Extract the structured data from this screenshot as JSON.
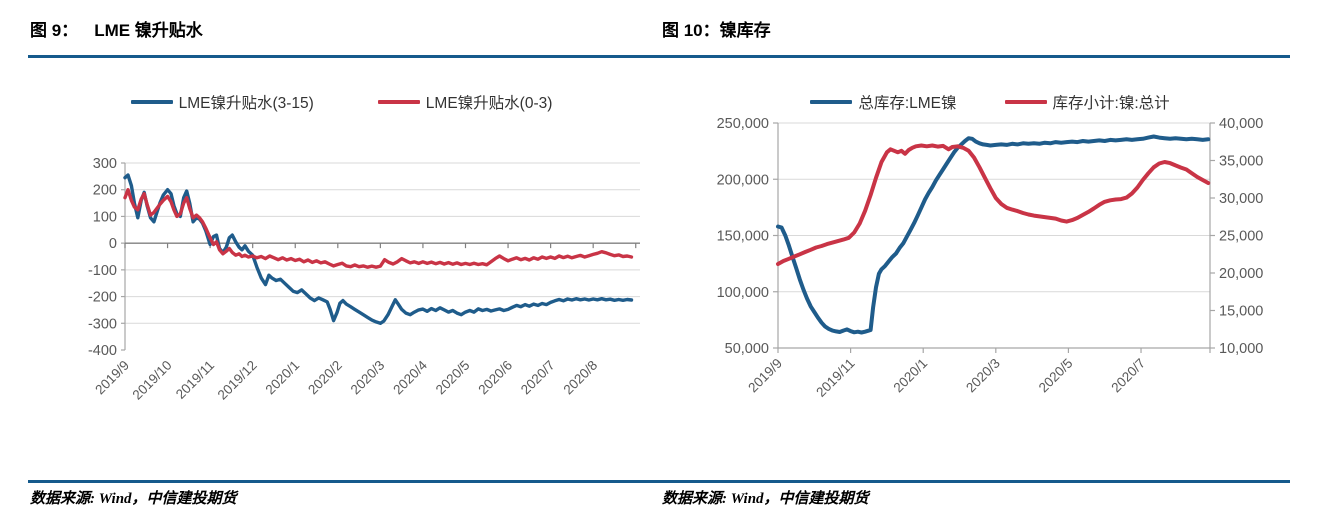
{
  "figures": [
    {
      "label": "图 9：",
      "title": "LME 镍升贴水",
      "source": "数据来源: Wind，中信建投期货"
    },
    {
      "label": "图 10：",
      "title": "镍库存",
      "source": "数据来源: Wind，中信建投期货"
    }
  ],
  "theme": {
    "rule_color": "#155a8c",
    "grid_color": "#d9d9d9",
    "axis_color": "#a6a6a6",
    "zero_line_color": "#808080",
    "tick_label_color": "#595959",
    "blue": "#1f5c8b",
    "red": "#c93446"
  },
  "chart_data": [
    {
      "type": "line",
      "title": "图 9： LME 镍升贴水",
      "legend_position": "top",
      "grid": true,
      "x_tick_labels": [
        "2019/9",
        "2019/10",
        "2019/11",
        "2019/12",
        "2020/1",
        "2020/2",
        "2020/3",
        "2020/4",
        "2020/5",
        "2020/6",
        "2020/7",
        "2020/8"
      ],
      "x_tick_positions": [
        0,
        1,
        2,
        3,
        4,
        5,
        6,
        7,
        8,
        9,
        10,
        11
      ],
      "xlim": [
        0,
        12.1
      ],
      "y_axis": {
        "min": -400,
        "max": 300,
        "step": 100,
        "labels": [
          "300",
          "200",
          "100",
          "0",
          "-100",
          "-200",
          "-300",
          "-400"
        ]
      },
      "series": [
        {
          "name": "LME镍升贴水(3-15)",
          "color": "#1f5c8b",
          "axis": "left",
          "x": [
            0,
            0.07,
            0.15,
            0.22,
            0.3,
            0.38,
            0.45,
            0.52,
            0.6,
            0.68,
            0.75,
            0.82,
            0.9,
            1,
            1.08,
            1.15,
            1.22,
            1.3,
            1.38,
            1.45,
            1.52,
            1.6,
            1.68,
            1.75,
            1.82,
            1.9,
            2,
            2.08,
            2.15,
            2.22,
            2.3,
            2.38,
            2.45,
            2.52,
            2.6,
            2.68,
            2.75,
            2.82,
            2.9,
            3,
            3.1,
            3.2,
            3.3,
            3.38,
            3.45,
            3.55,
            3.65,
            3.75,
            3.85,
            3.95,
            4.05,
            4.15,
            4.25,
            4.35,
            4.45,
            4.55,
            4.65,
            4.75,
            4.82,
            4.9,
            4.98,
            5.05,
            5.12,
            5.2,
            5.3,
            5.4,
            5.5,
            5.6,
            5.7,
            5.8,
            5.9,
            6,
            6.08,
            6.18,
            6.28,
            6.35,
            6.42,
            6.5,
            6.6,
            6.7,
            6.8,
            6.9,
            7,
            7.1,
            7.2,
            7.3,
            7.4,
            7.5,
            7.6,
            7.7,
            7.8,
            7.9,
            8,
            8.1,
            8.2,
            8.3,
            8.4,
            8.5,
            8.6,
            8.7,
            8.8,
            8.9,
            9,
            9.1,
            9.2,
            9.3,
            9.4,
            9.5,
            9.6,
            9.7,
            9.8,
            9.9,
            10,
            10.1,
            10.2,
            10.3,
            10.4,
            10.5,
            10.6,
            10.7,
            10.8,
            10.9,
            11,
            11.1,
            11.2,
            11.3,
            11.4,
            11.5,
            11.6,
            11.7,
            11.8,
            11.9
          ],
          "y": [
            245,
            255,
            215,
            150,
            95,
            160,
            190,
            140,
            95,
            80,
            115,
            150,
            180,
            200,
            185,
            140,
            110,
            100,
            170,
            195,
            150,
            80,
            95,
            90,
            75,
            45,
            -5,
            25,
            30,
            -20,
            -35,
            -15,
            20,
            30,
            5,
            -15,
            -25,
            -10,
            -30,
            -45,
            -90,
            -130,
            -155,
            -120,
            -130,
            -140,
            -135,
            -150,
            -165,
            -180,
            -185,
            -175,
            -190,
            -205,
            -215,
            -205,
            -212,
            -220,
            -248,
            -290,
            -260,
            -225,
            -215,
            -228,
            -238,
            -248,
            -258,
            -268,
            -278,
            -288,
            -295,
            -300,
            -292,
            -268,
            -235,
            -212,
            -228,
            -248,
            -262,
            -268,
            -258,
            -250,
            -247,
            -255,
            -245,
            -252,
            -242,
            -250,
            -258,
            -252,
            -262,
            -268,
            -258,
            -252,
            -258,
            -246,
            -252,
            -248,
            -254,
            -250,
            -246,
            -252,
            -248,
            -240,
            -233,
            -238,
            -230,
            -236,
            -228,
            -233,
            -226,
            -230,
            -222,
            -216,
            -211,
            -216,
            -209,
            -213,
            -208,
            -212,
            -209,
            -213,
            -209,
            -212,
            -208,
            -212,
            -210,
            -214,
            -211,
            -214,
            -211,
            -213
          ]
        },
        {
          "name": "LME镍升贴水(0-3)",
          "color": "#c93446",
          "axis": "left",
          "x": [
            0,
            0.07,
            0.15,
            0.22,
            0.3,
            0.38,
            0.45,
            0.52,
            0.6,
            0.68,
            0.75,
            0.82,
            0.9,
            1,
            1.08,
            1.15,
            1.22,
            1.3,
            1.38,
            1.45,
            1.52,
            1.6,
            1.68,
            1.75,
            1.82,
            1.9,
            2,
            2.08,
            2.15,
            2.22,
            2.3,
            2.38,
            2.45,
            2.52,
            2.6,
            2.68,
            2.75,
            2.82,
            2.9,
            3,
            3.1,
            3.2,
            3.3,
            3.4,
            3.5,
            3.6,
            3.7,
            3.8,
            3.9,
            4,
            4.1,
            4.2,
            4.3,
            4.4,
            4.5,
            4.6,
            4.7,
            4.8,
            4.9,
            5,
            5.1,
            5.2,
            5.3,
            5.4,
            5.5,
            5.6,
            5.7,
            5.8,
            5.9,
            6,
            6.1,
            6.2,
            6.3,
            6.4,
            6.5,
            6.6,
            6.7,
            6.8,
            6.9,
            7,
            7.1,
            7.2,
            7.3,
            7.4,
            7.5,
            7.6,
            7.7,
            7.8,
            7.9,
            8,
            8.1,
            8.2,
            8.3,
            8.4,
            8.5,
            8.6,
            8.7,
            8.8,
            8.9,
            9,
            9.1,
            9.2,
            9.3,
            9.4,
            9.5,
            9.6,
            9.7,
            9.8,
            9.9,
            10,
            10.1,
            10.2,
            10.3,
            10.4,
            10.5,
            10.6,
            10.7,
            10.8,
            10.9,
            11,
            11.1,
            11.2,
            11.3,
            11.4,
            11.5,
            11.6,
            11.7,
            11.8,
            11.9
          ],
          "y": [
            170,
            200,
            160,
            135,
            125,
            165,
            185,
            145,
            105,
            115,
            130,
            145,
            160,
            175,
            155,
            125,
            100,
            110,
            150,
            170,
            130,
            95,
            105,
            95,
            80,
            55,
            20,
            -5,
            5,
            -25,
            -40,
            -30,
            -20,
            -35,
            -45,
            -40,
            -50,
            -45,
            -52,
            -48,
            -55,
            -50,
            -58,
            -48,
            -55,
            -62,
            -55,
            -63,
            -58,
            -65,
            -60,
            -70,
            -63,
            -72,
            -66,
            -74,
            -70,
            -78,
            -85,
            -80,
            -75,
            -85,
            -88,
            -82,
            -88,
            -85,
            -90,
            -86,
            -90,
            -86,
            -62,
            -72,
            -78,
            -70,
            -58,
            -66,
            -74,
            -70,
            -76,
            -70,
            -76,
            -71,
            -77,
            -72,
            -78,
            -73,
            -79,
            -74,
            -80,
            -76,
            -80,
            -75,
            -80,
            -77,
            -81,
            -70,
            -58,
            -48,
            -58,
            -66,
            -60,
            -55,
            -62,
            -57,
            -63,
            -55,
            -60,
            -52,
            -57,
            -52,
            -57,
            -48,
            -54,
            -49,
            -55,
            -50,
            -46,
            -52,
            -47,
            -42,
            -38,
            -32,
            -36,
            -42,
            -47,
            -44,
            -50,
            -48,
            -52
          ]
        }
      ]
    },
    {
      "type": "line",
      "title": "图 10：镍库存",
      "legend_position": "top",
      "grid": true,
      "x_tick_labels": [
        "2019/9",
        "2019/11",
        "2020/1",
        "2020/3",
        "2020/5",
        "2020/7"
      ],
      "x_tick_positions": [
        0,
        2,
        4,
        6,
        8,
        10
      ],
      "xlim": [
        0,
        11.9
      ],
      "y_axis_left": {
        "min": 50000,
        "max": 250000,
        "step": 50000,
        "labels": [
          "250,000",
          "200,000",
          "150,000",
          "100,000",
          "50,000"
        ]
      },
      "y_axis_right": {
        "min": 10000,
        "max": 40000,
        "step": 5000,
        "labels": [
          "40,000",
          "35,000",
          "30,000",
          "25,000",
          "20,000",
          "15,000",
          "10,000"
        ]
      },
      "series": [
        {
          "name": "总库存:LME镍",
          "color": "#1f5c8b",
          "axis": "left",
          "x": [
            0,
            0.1,
            0.2,
            0.3,
            0.4,
            0.5,
            0.6,
            0.7,
            0.8,
            0.9,
            1,
            1.1,
            1.2,
            1.3,
            1.4,
            1.5,
            1.6,
            1.7,
            1.8,
            1.9,
            2,
            2.1,
            2.2,
            2.3,
            2.4,
            2.5,
            2.55,
            2.62,
            2.7,
            2.78,
            2.85,
            2.95,
            3.05,
            3.15,
            3.25,
            3.35,
            3.45,
            3.55,
            3.65,
            3.75,
            3.85,
            3.95,
            4.05,
            4.15,
            4.25,
            4.35,
            4.45,
            4.55,
            4.65,
            4.75,
            4.85,
            4.95,
            5.05,
            5.15,
            5.25,
            5.35,
            5.45,
            5.55,
            5.65,
            5.75,
            5.85,
            6,
            6.15,
            6.3,
            6.45,
            6.6,
            6.75,
            6.9,
            7.05,
            7.2,
            7.35,
            7.5,
            7.65,
            7.8,
            7.95,
            8.1,
            8.25,
            8.4,
            8.55,
            8.7,
            8.85,
            9,
            9.15,
            9.3,
            9.45,
            9.6,
            9.75,
            9.9,
            10.05,
            10.2,
            10.35,
            10.5,
            10.65,
            10.8,
            10.95,
            11.1,
            11.25,
            11.4,
            11.55,
            11.7,
            11.85
          ],
          "y": [
            158000,
            157000,
            150000,
            141000,
            131000,
            121000,
            111000,
            102000,
            94000,
            87000,
            82000,
            77000,
            72500,
            69000,
            67000,
            65500,
            64800,
            64200,
            65500,
            66500,
            65000,
            64000,
            64500,
            63800,
            64500,
            65500,
            66000,
            86000,
            104000,
            116000,
            120000,
            123000,
            127000,
            131000,
            134000,
            139000,
            143000,
            149000,
            155000,
            161000,
            168000,
            175000,
            182000,
            188000,
            193000,
            199000,
            204000,
            209000,
            214000,
            219000,
            224000,
            228000,
            231000,
            234000,
            236500,
            236000,
            233500,
            232000,
            231000,
            230500,
            230000,
            230500,
            231000,
            230500,
            231500,
            231000,
            232000,
            231500,
            232000,
            231500,
            232500,
            232000,
            233000,
            232500,
            233000,
            233500,
            233000,
            234000,
            233500,
            234000,
            234500,
            234000,
            235000,
            234500,
            235000,
            235500,
            235000,
            235500,
            236000,
            237000,
            238000,
            237000,
            236500,
            236000,
            236500,
            236000,
            235500,
            236000,
            235500,
            235000,
            235500
          ]
        },
        {
          "name": "库存小计:镍:总计",
          "color": "#c93446",
          "axis": "right",
          "x": [
            0,
            0.15,
            0.3,
            0.45,
            0.6,
            0.75,
            0.9,
            1.05,
            1.2,
            1.35,
            1.5,
            1.65,
            1.8,
            1.95,
            2.1,
            2.25,
            2.4,
            2.55,
            2.7,
            2.85,
            3,
            3.1,
            3.2,
            3.3,
            3.4,
            3.5,
            3.6,
            3.7,
            3.8,
            3.95,
            4.1,
            4.25,
            4.4,
            4.55,
            4.7,
            4.8,
            4.95,
            5.1,
            5.25,
            5.4,
            5.55,
            5.7,
            5.85,
            6,
            6.15,
            6.3,
            6.45,
            6.6,
            6.75,
            6.9,
            7.05,
            7.2,
            7.35,
            7.5,
            7.65,
            7.8,
            7.95,
            8.1,
            8.25,
            8.4,
            8.55,
            8.7,
            8.85,
            9,
            9.15,
            9.3,
            9.45,
            9.6,
            9.75,
            9.9,
            10.05,
            10.2,
            10.35,
            10.5,
            10.65,
            10.8,
            10.95,
            11.1,
            11.25,
            11.4,
            11.55,
            11.7,
            11.85
          ],
          "y": [
            21200,
            21600,
            21900,
            22200,
            22500,
            22800,
            23100,
            23400,
            23600,
            23850,
            24050,
            24250,
            24450,
            24700,
            25400,
            26600,
            28300,
            30400,
            32700,
            34800,
            36100,
            36500,
            36300,
            36100,
            36300,
            35900,
            36400,
            36700,
            36900,
            37000,
            36900,
            37000,
            36850,
            36950,
            36500,
            36800,
            36900,
            36700,
            36300,
            35400,
            34100,
            32700,
            31300,
            30000,
            29200,
            28700,
            28450,
            28250,
            28000,
            27800,
            27650,
            27550,
            27450,
            27350,
            27250,
            27000,
            26850,
            27050,
            27350,
            27750,
            28150,
            28600,
            29100,
            29500,
            29700,
            29800,
            29850,
            30050,
            30600,
            31400,
            32400,
            33300,
            34100,
            34600,
            34800,
            34650,
            34350,
            34050,
            33800,
            33300,
            32800,
            32400,
            32000
          ]
        }
      ]
    }
  ]
}
